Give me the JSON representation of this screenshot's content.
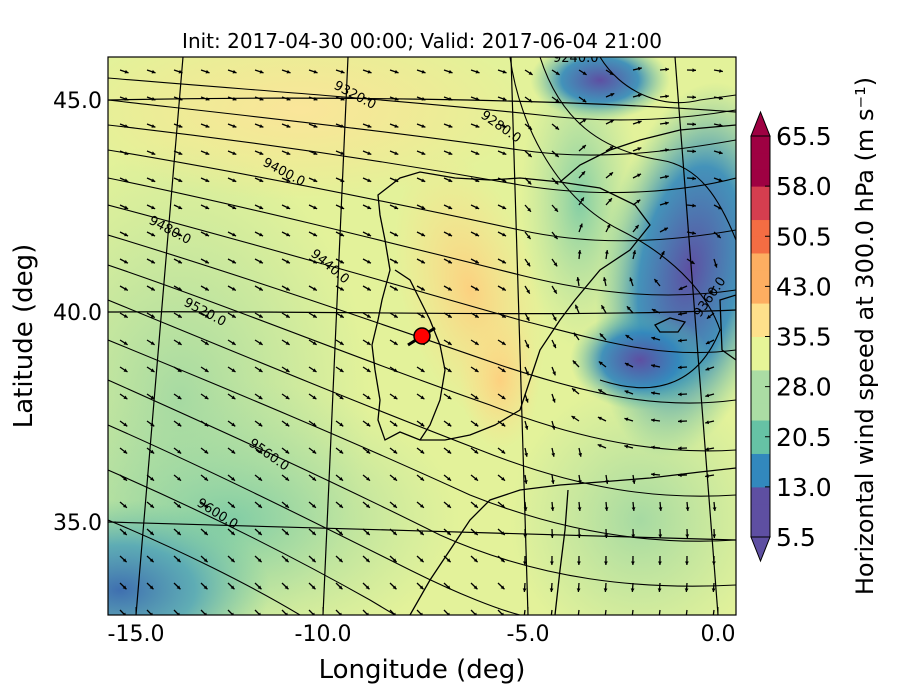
{
  "title": "Init: 2017-04-30 00:00; Valid: 2017-06-04 21:00",
  "xlabel": "Longitude (deg)",
  "ylabel": "Latitude (deg)",
  "x_ticks": [
    "-15.0",
    "-10.0",
    "-5.0",
    "0.0"
  ],
  "y_ticks": [
    "45.0",
    "40.0",
    "35.0"
  ],
  "colorbar": {
    "label": "Horizontal wind speed at 300.0 hPa (m s⁻¹)",
    "ticks": [
      "65.5",
      "58.0",
      "50.5",
      "43.0",
      "35.5",
      "28.0",
      "20.5",
      "13.0",
      "5.5"
    ],
    "min": 5.5,
    "max": 65.5,
    "colors": [
      "#5e4fa2",
      "#3288bd",
      "#66c2a5",
      "#abdda4",
      "#e6f598",
      "#fee08b",
      "#fdae61",
      "#f46d43",
      "#d53e4f",
      "#9e0142"
    ]
  },
  "contour_labels": [
    "9240.0",
    "9320.0",
    "9280.0",
    "9400.0",
    "9480.0",
    "9440.0",
    "9520.0",
    "9360.0",
    "9560.0",
    "9600.0"
  ],
  "chart_data": {
    "type": "heatmap",
    "title": "Init: 2017-04-30 00:00; Valid: 2017-06-04 21:00",
    "xlabel": "Longitude (deg)",
    "ylabel": "Latitude (deg)",
    "xlim": [
      -15.8,
      0.2
    ],
    "ylim": [
      32.8,
      46.2
    ],
    "variable": "Horizontal wind speed at 300.0 hPa",
    "units": "m s-1",
    "color_range": [
      5.5,
      65.5
    ],
    "colormap": "Spectral_r",
    "overlays": [
      "geopotential height contours (9240.0 to 9600.0)",
      "wind vectors",
      "coastlines and borders",
      "red point marker"
    ],
    "marker": {
      "lon": -7.6,
      "lat": 39.4,
      "color": "#ff0000"
    }
  }
}
